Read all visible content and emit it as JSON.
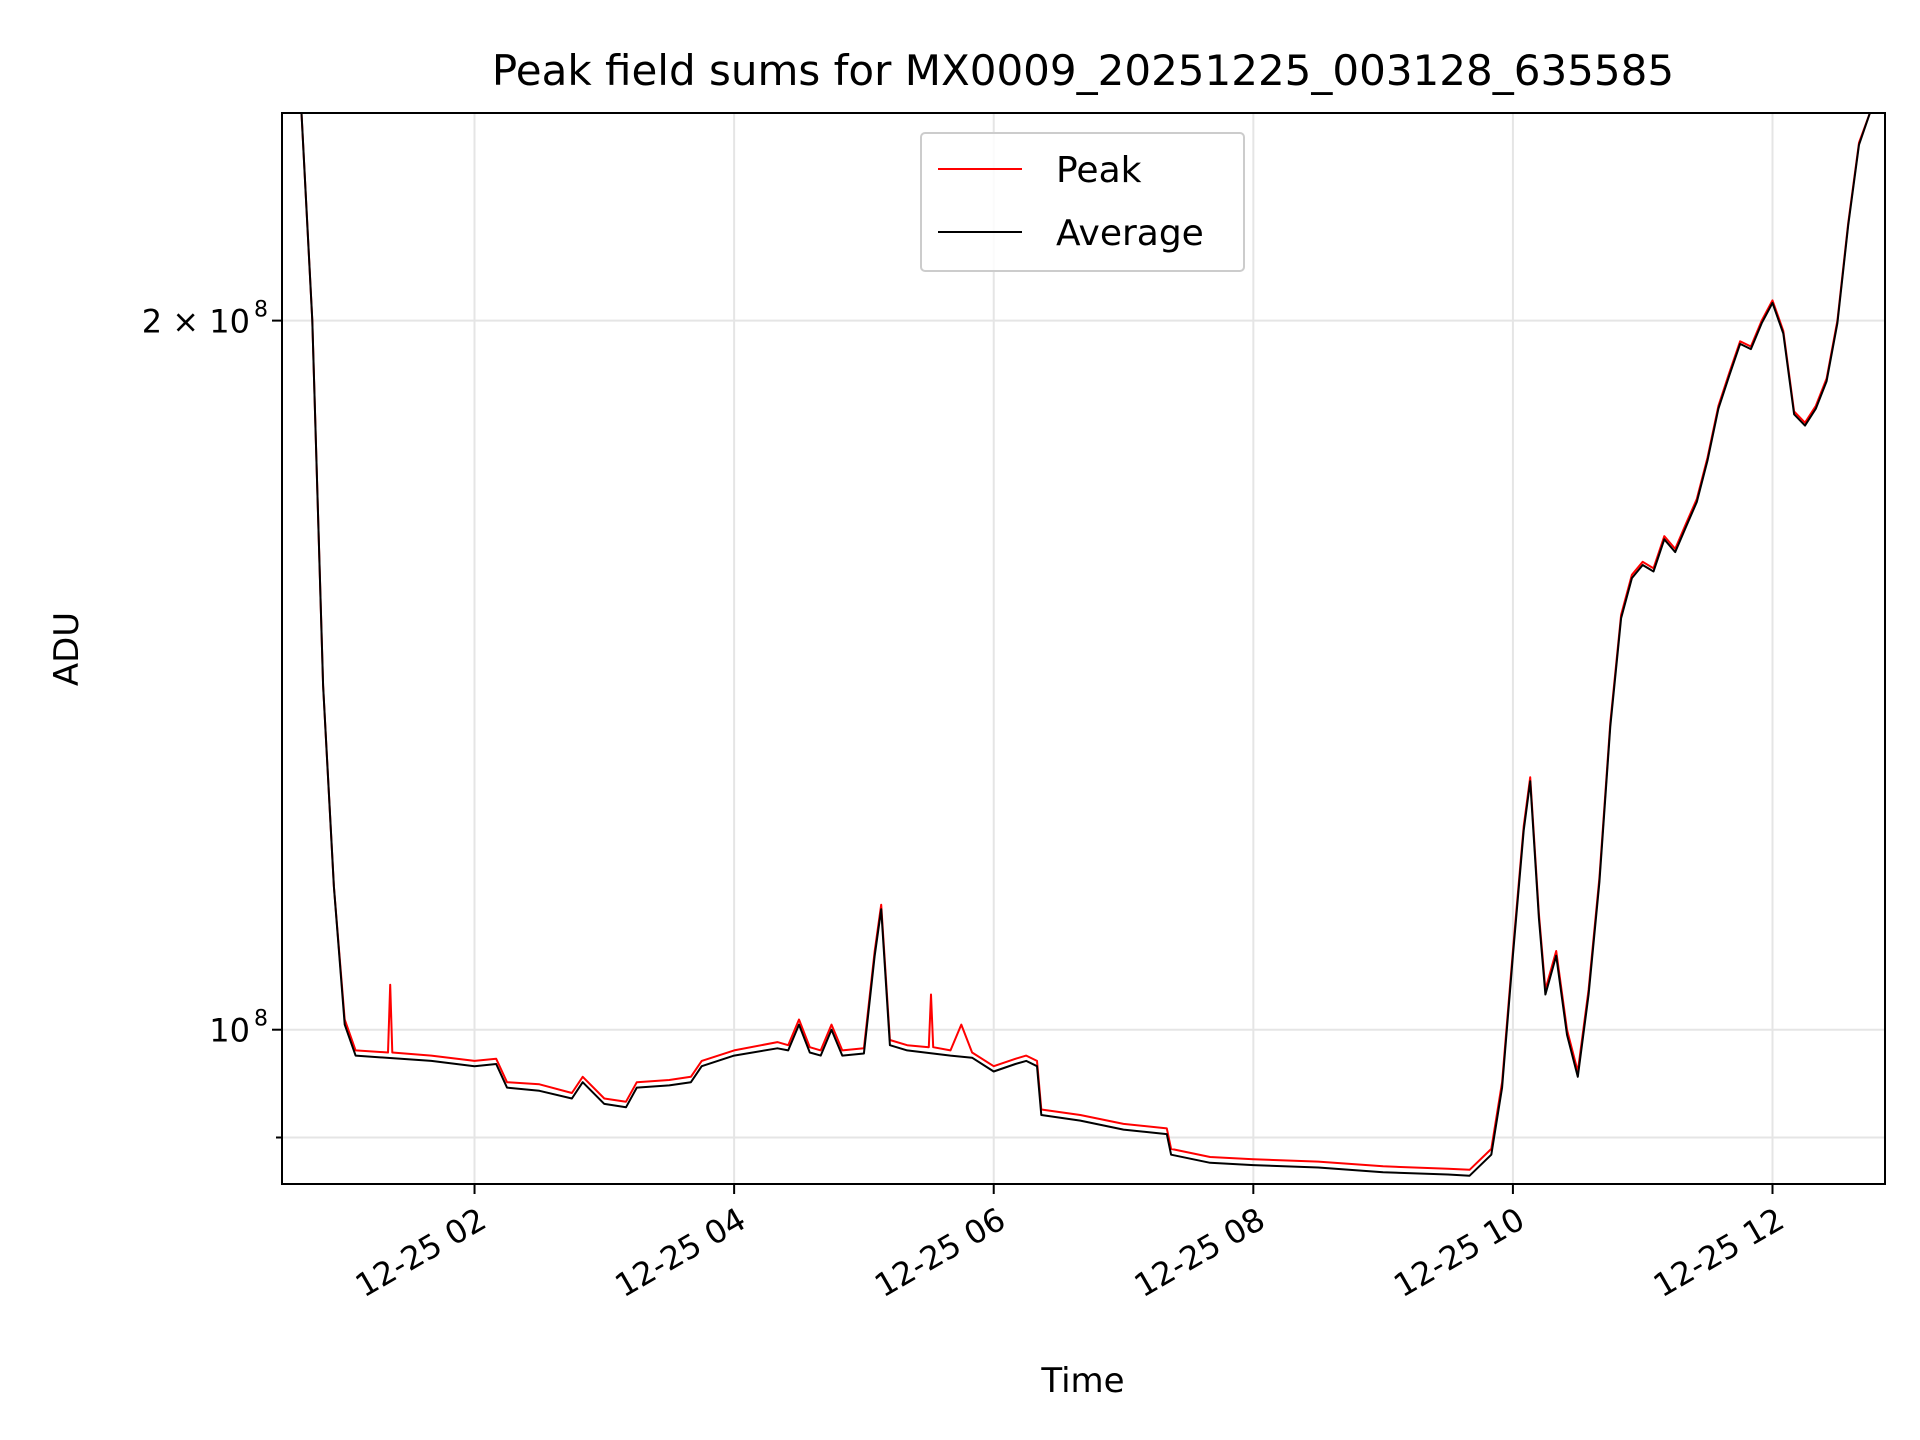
{
  "chart_data": {
    "type": "line",
    "title": "Peak field sums for MX0009_20251225_003128_635585",
    "xlabel": "Time",
    "ylabel": "ADU",
    "y_scale": "log",
    "ylim": [
      86000000,
      245000000
    ],
    "xlim": [
      "12-25 00:31",
      "12-25 12:52"
    ],
    "grid": true,
    "legend_position": "upper center",
    "x_ticks": [
      {
        "t": "12-25 02:00",
        "label": "12-25 02"
      },
      {
        "t": "12-25 04:00",
        "label": "12-25 04"
      },
      {
        "t": "12-25 06:00",
        "label": "12-25 06"
      },
      {
        "t": "12-25 08:00",
        "label": "12-25 08"
      },
      {
        "t": "12-25 10:00",
        "label": "12-25 10"
      },
      {
        "t": "12-25 12:00",
        "label": "12-25 12"
      }
    ],
    "y_ticks": [
      {
        "value": 200000000,
        "label_base": "2 × 10",
        "label_exp": "8"
      },
      {
        "value": 100000000,
        "label_base": "10",
        "label_exp": "8"
      }
    ],
    "y_minor_ticks": [
      90000000
    ],
    "series": [
      {
        "name": "Peak",
        "color": "#ff0000",
        "points": [
          [
            "12-25 00:31",
            245000000
          ],
          [
            "12-25 00:40",
            245000000
          ],
          [
            "12-25 00:45",
            200000000
          ],
          [
            "12-25 00:50",
            140000000
          ],
          [
            "12-25 00:55",
            115000000
          ],
          [
            "12-25 01:00",
            101000000
          ],
          [
            "12-25 01:05",
            98000000
          ],
          [
            "12-25 01:20",
            97800000
          ],
          [
            "12-25 01:21",
            104500000
          ],
          [
            "12-25 01:22",
            97800000
          ],
          [
            "12-25 01:40",
            97500000
          ],
          [
            "12-25 02:00",
            97000000
          ],
          [
            "12-25 02:10",
            97200000
          ],
          [
            "12-25 02:15",
            95000000
          ],
          [
            "12-25 02:30",
            94800000
          ],
          [
            "12-25 02:45",
            94000000
          ],
          [
            "12-25 02:50",
            95500000
          ],
          [
            "12-25 03:00",
            93500000
          ],
          [
            "12-25 03:10",
            93200000
          ],
          [
            "12-25 03:15",
            95000000
          ],
          [
            "12-25 03:30",
            95200000
          ],
          [
            "12-25 03:40",
            95500000
          ],
          [
            "12-25 03:45",
            97000000
          ],
          [
            "12-25 04:00",
            98000000
          ],
          [
            "12-25 04:20",
            98800000
          ],
          [
            "12-25 04:25",
            98500000
          ],
          [
            "12-25 04:30",
            101000000
          ],
          [
            "12-25 04:35",
            98300000
          ],
          [
            "12-25 04:40",
            98000000
          ],
          [
            "12-25 04:45",
            100500000
          ],
          [
            "12-25 04:50",
            98000000
          ],
          [
            "12-25 05:00",
            98200000
          ],
          [
            "12-25 05:05",
            108000000
          ],
          [
            "12-25 05:08",
            113000000
          ],
          [
            "12-25 05:12",
            99000000
          ],
          [
            "12-25 05:20",
            98500000
          ],
          [
            "12-25 05:30",
            98300000
          ],
          [
            "12-25 05:31",
            103500000
          ],
          [
            "12-25 05:32",
            98300000
          ],
          [
            "12-25 05:40",
            98000000
          ],
          [
            "12-25 05:45",
            100500000
          ],
          [
            "12-25 05:50",
            97800000
          ],
          [
            "12-25 06:00",
            96500000
          ],
          [
            "12-25 06:10",
            97200000
          ],
          [
            "12-25 06:15",
            97500000
          ],
          [
            "12-25 06:20",
            97000000
          ],
          [
            "12-25 06:22",
            92500000
          ],
          [
            "12-25 06:40",
            92000000
          ],
          [
            "12-25 07:00",
            91200000
          ],
          [
            "12-25 07:20",
            90800000
          ],
          [
            "12-25 07:22",
            89000000
          ],
          [
            "12-25 07:40",
            88300000
          ],
          [
            "12-25 08:00",
            88100000
          ],
          [
            "12-25 08:30",
            87900000
          ],
          [
            "12-25 09:00",
            87500000
          ],
          [
            "12-25 09:30",
            87300000
          ],
          [
            "12-25 09:40",
            87200000
          ],
          [
            "12-25 09:50",
            89000000
          ],
          [
            "12-25 09:55",
            95000000
          ],
          [
            "12-25 10:00",
            108000000
          ],
          [
            "12-25 10:05",
            122000000
          ],
          [
            "12-25 10:08",
            128000000
          ],
          [
            "12-25 10:12",
            112000000
          ],
          [
            "12-25 10:15",
            104000000
          ],
          [
            "12-25 10:20",
            108000000
          ],
          [
            "12-25 10:25",
            100000000
          ],
          [
            "12-25 10:30",
            96000000
          ],
          [
            "12-25 10:35",
            104000000
          ],
          [
            "12-25 10:40",
            116000000
          ],
          [
            "12-25 10:45",
            135000000
          ],
          [
            "12-25 10:50",
            150000000
          ],
          [
            "12-25 10:55",
            156000000
          ],
          [
            "12-25 11:00",
            158000000
          ],
          [
            "12-25 11:05",
            157000000
          ],
          [
            "12-25 11:10",
            162000000
          ],
          [
            "12-25 11:15",
            160000000
          ],
          [
            "12-25 11:20",
            164000000
          ],
          [
            "12-25 11:25",
            168000000
          ],
          [
            "12-25 11:30",
            175000000
          ],
          [
            "12-25 11:35",
            184000000
          ],
          [
            "12-25 11:40",
            190000000
          ],
          [
            "12-25 11:45",
            196000000
          ],
          [
            "12-25 11:50",
            195000000
          ],
          [
            "12-25 11:55",
            200000000
          ],
          [
            "12-25 12:00",
            204000000
          ],
          [
            "12-25 12:05",
            198000000
          ],
          [
            "12-25 12:10",
            183000000
          ],
          [
            "12-25 12:15",
            181000000
          ],
          [
            "12-25 12:20",
            184000000
          ],
          [
            "12-25 12:25",
            189000000
          ],
          [
            "12-25 12:30",
            200000000
          ],
          [
            "12-25 12:35",
            220000000
          ],
          [
            "12-25 12:40",
            238000000
          ],
          [
            "12-25 12:45",
            245000000
          ],
          [
            "12-25 12:52",
            245000000
          ]
        ]
      },
      {
        "name": "Average",
        "color": "#000000",
        "points": [
          [
            "12-25 00:31",
            245000000
          ],
          [
            "12-25 00:40",
            245000000
          ],
          [
            "12-25 00:45",
            200000000
          ],
          [
            "12-25 00:50",
            140000000
          ],
          [
            "12-25 00:55",
            115000000
          ],
          [
            "12-25 01:00",
            100500000
          ],
          [
            "12-25 01:05",
            97500000
          ],
          [
            "12-25 01:40",
            97000000
          ],
          [
            "12-25 02:00",
            96500000
          ],
          [
            "12-25 02:10",
            96700000
          ],
          [
            "12-25 02:15",
            94500000
          ],
          [
            "12-25 02:30",
            94200000
          ],
          [
            "12-25 02:45",
            93500000
          ],
          [
            "12-25 02:50",
            95000000
          ],
          [
            "12-25 03:00",
            93000000
          ],
          [
            "12-25 03:10",
            92700000
          ],
          [
            "12-25 03:15",
            94500000
          ],
          [
            "12-25 03:30",
            94700000
          ],
          [
            "12-25 03:40",
            95000000
          ],
          [
            "12-25 03:45",
            96500000
          ],
          [
            "12-25 04:00",
            97500000
          ],
          [
            "12-25 04:20",
            98200000
          ],
          [
            "12-25 04:25",
            98000000
          ],
          [
            "12-25 04:30",
            100500000
          ],
          [
            "12-25 04:35",
            97800000
          ],
          [
            "12-25 04:40",
            97500000
          ],
          [
            "12-25 04:45",
            100000000
          ],
          [
            "12-25 04:50",
            97500000
          ],
          [
            "12-25 05:00",
            97700000
          ],
          [
            "12-25 05:05",
            107500000
          ],
          [
            "12-25 05:08",
            112500000
          ],
          [
            "12-25 05:12",
            98500000
          ],
          [
            "12-25 05:20",
            98000000
          ],
          [
            "12-25 05:40",
            97500000
          ],
          [
            "12-25 05:50",
            97300000
          ],
          [
            "12-25 06:00",
            96000000
          ],
          [
            "12-25 06:10",
            96700000
          ],
          [
            "12-25 06:15",
            97000000
          ],
          [
            "12-25 06:20",
            96500000
          ],
          [
            "12-25 06:22",
            92000000
          ],
          [
            "12-25 06:40",
            91500000
          ],
          [
            "12-25 07:00",
            90700000
          ],
          [
            "12-25 07:20",
            90300000
          ],
          [
            "12-25 07:22",
            88500000
          ],
          [
            "12-25 07:40",
            87800000
          ],
          [
            "12-25 08:00",
            87600000
          ],
          [
            "12-25 08:30",
            87400000
          ],
          [
            "12-25 09:00",
            87000000
          ],
          [
            "12-25 09:30",
            86800000
          ],
          [
            "12-25 09:40",
            86700000
          ],
          [
            "12-25 09:50",
            88500000
          ],
          [
            "12-25 09:55",
            94500000
          ],
          [
            "12-25 10:00",
            107500000
          ],
          [
            "12-25 10:05",
            121500000
          ],
          [
            "12-25 10:08",
            127500000
          ],
          [
            "12-25 10:12",
            111500000
          ],
          [
            "12-25 10:15",
            103500000
          ],
          [
            "12-25 10:20",
            107500000
          ],
          [
            "12-25 10:25",
            99500000
          ],
          [
            "12-25 10:30",
            95500000
          ],
          [
            "12-25 10:35",
            103500000
          ],
          [
            "12-25 10:40",
            115500000
          ],
          [
            "12-25 10:45",
            134500000
          ],
          [
            "12-25 10:50",
            149500000
          ],
          [
            "12-25 10:55",
            155500000
          ],
          [
            "12-25 11:00",
            157500000
          ],
          [
            "12-25 11:05",
            156500000
          ],
          [
            "12-25 11:10",
            161500000
          ],
          [
            "12-25 11:15",
            159500000
          ],
          [
            "12-25 11:20",
            163500000
          ],
          [
            "12-25 11:25",
            167500000
          ],
          [
            "12-25 11:30",
            174500000
          ],
          [
            "12-25 11:35",
            183500000
          ],
          [
            "12-25 11:40",
            189500000
          ],
          [
            "12-25 11:45",
            195500000
          ],
          [
            "12-25 11:50",
            194500000
          ],
          [
            "12-25 11:55",
            199500000
          ],
          [
            "12-25 12:00",
            203500000
          ],
          [
            "12-25 12:05",
            197500000
          ],
          [
            "12-25 12:10",
            182500000
          ],
          [
            "12-25 12:15",
            180500000
          ],
          [
            "12-25 12:20",
            183500000
          ],
          [
            "12-25 12:25",
            188500000
          ],
          [
            "12-25 12:30",
            199500000
          ],
          [
            "12-25 12:35",
            219500000
          ],
          [
            "12-25 12:40",
            237500000
          ],
          [
            "12-25 12:45",
            245000000
          ],
          [
            "12-25 12:52",
            245000000
          ]
        ]
      }
    ]
  }
}
